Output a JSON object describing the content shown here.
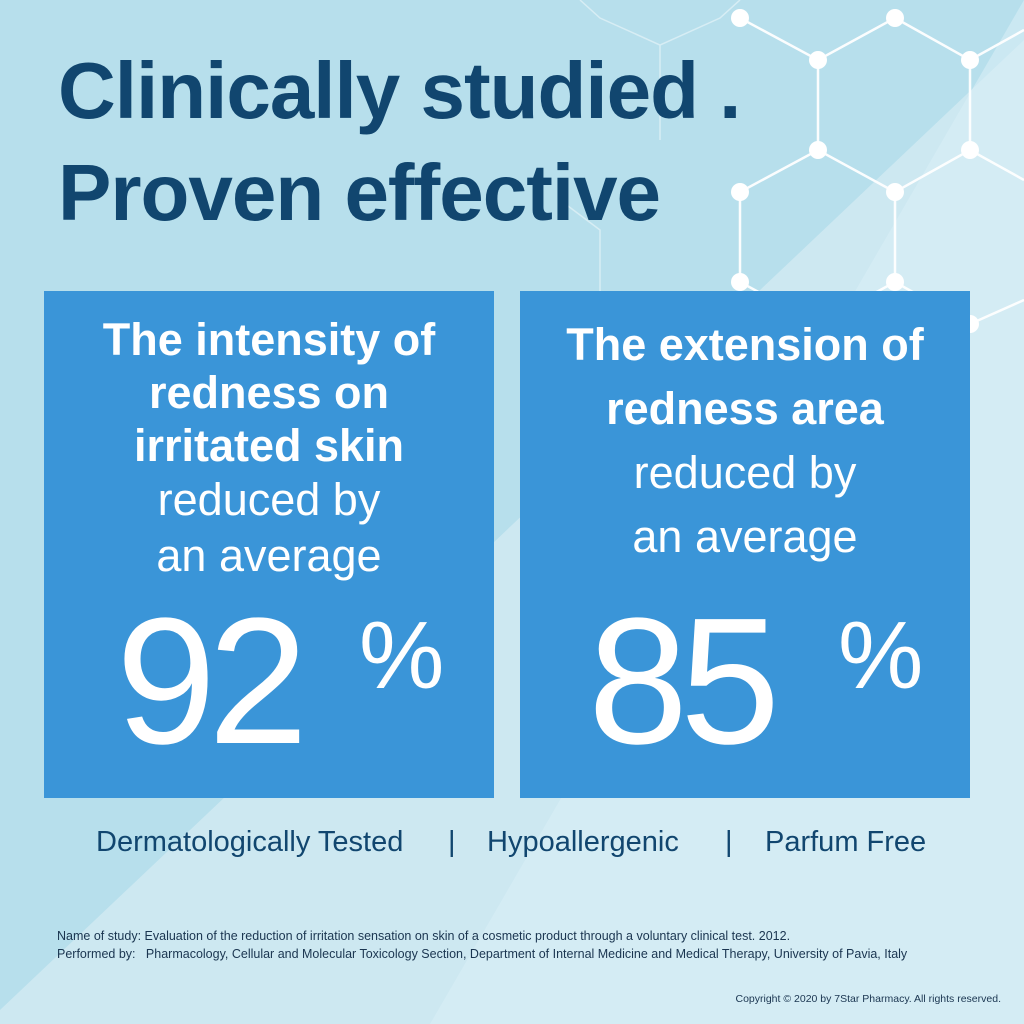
{
  "headline": {
    "line1": "Clinically studied .",
    "line2": "Proven effective"
  },
  "cards": [
    {
      "bold_lines": [
        "The intensity of",
        "redness on",
        "irritated skin"
      ],
      "light_lines": [
        "reduced by",
        "an average"
      ],
      "value": "92",
      "unit": "%"
    },
    {
      "bold_lines": [
        "The extension of",
        "redness area"
      ],
      "light_lines": [
        "reduced by",
        "an average"
      ],
      "value": "85",
      "unit": "%"
    }
  ],
  "features": {
    "items": [
      "Dermatologically Tested",
      "Hypoallergenic",
      "Parfum Free"
    ],
    "separator": "|"
  },
  "study": {
    "line1": "Name of study: Evaluation of the reduction of irritation sensation on skin of a cosmetic product through a voluntary clinical test. 2012.",
    "line2": "Performed by:   Pharmacology, Cellular and Molecular Toxicology Section, Department of Internal Medicine and Medical Therapy, University of Pavia, Italy"
  },
  "copyright": "Copyright © 2020 by 7Star Pharmacy. All rights reserved.",
  "colors": {
    "background": "#b7dfec",
    "headline": "#11466f",
    "card": "#3a95d8"
  }
}
